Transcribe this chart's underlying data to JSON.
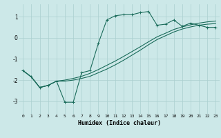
{
  "xlabel": "Humidex (Indice chaleur)",
  "background_color": "#cce8e8",
  "grid_color": "#aacfcf",
  "line_color": "#1a6b5a",
  "xlim": [
    -0.5,
    23.5
  ],
  "ylim": [
    -3.6,
    1.6
  ],
  "yticks": [
    -3,
    -2,
    -1,
    0,
    1
  ],
  "xticks": [
    0,
    1,
    2,
    3,
    4,
    5,
    6,
    7,
    8,
    9,
    10,
    11,
    12,
    13,
    14,
    15,
    16,
    17,
    18,
    19,
    20,
    21,
    22,
    23
  ],
  "line1_x": [
    0,
    1,
    2,
    3,
    4,
    5,
    6,
    7,
    8,
    9,
    10,
    11,
    12,
    13,
    14,
    15,
    16,
    17,
    18,
    19,
    20,
    21,
    22,
    23
  ],
  "line1_y": [
    -1.55,
    -1.85,
    -2.35,
    -2.25,
    -2.05,
    -3.05,
    -3.05,
    -1.65,
    -1.55,
    -0.25,
    0.85,
    1.05,
    1.1,
    1.1,
    1.2,
    1.25,
    0.6,
    0.65,
    0.85,
    0.55,
    0.7,
    0.6,
    0.5,
    0.5
  ],
  "line2_x": [
    0,
    1,
    2,
    3,
    4,
    5,
    6,
    7,
    8,
    9,
    10,
    11,
    12,
    13,
    14,
    15,
    16,
    17,
    18,
    19,
    20,
    21,
    22,
    23
  ],
  "line2_y": [
    -1.55,
    -1.85,
    -2.35,
    -2.25,
    -2.05,
    -2.0,
    -1.92,
    -1.82,
    -1.68,
    -1.5,
    -1.3,
    -1.1,
    -0.88,
    -0.65,
    -0.42,
    -0.18,
    0.05,
    0.22,
    0.4,
    0.52,
    0.62,
    0.7,
    0.76,
    0.8
  ],
  "line3_x": [
    0,
    1,
    2,
    3,
    4,
    5,
    6,
    7,
    8,
    9,
    10,
    11,
    12,
    13,
    14,
    15,
    16,
    17,
    18,
    19,
    20,
    21,
    22,
    23
  ],
  "line3_y": [
    -1.55,
    -1.85,
    -2.35,
    -2.25,
    -2.05,
    -2.05,
    -2.0,
    -1.92,
    -1.82,
    -1.65,
    -1.48,
    -1.28,
    -1.06,
    -0.82,
    -0.58,
    -0.32,
    -0.08,
    0.1,
    0.28,
    0.42,
    0.52,
    0.6,
    0.65,
    0.68
  ]
}
